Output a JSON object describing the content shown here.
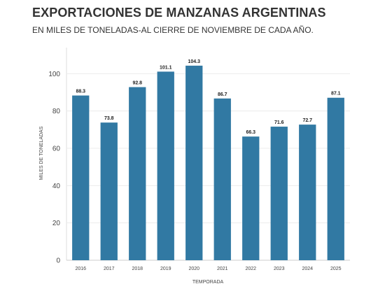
{
  "header": {
    "title": "EXPORTACIONES DE MANZANAS ARGENTINAS",
    "subtitle": "EN MILES DE TONELADAS-AL CIERRE DE NOVIEMBRE DE CADA AÑO."
  },
  "chart_data": {
    "type": "bar",
    "categories": [
      "2016",
      "2017",
      "2018",
      "2019",
      "2020",
      "2021",
      "2022",
      "2023",
      "2024",
      "2025"
    ],
    "values": [
      88.3,
      73.8,
      92.8,
      101.1,
      104.3,
      86.7,
      66.3,
      71.6,
      72.7,
      87.1
    ],
    "value_labels": [
      "88.3",
      "73.8",
      "92.8",
      "101.1",
      "104.3",
      "86.7",
      "66.3",
      "71.6",
      "72.7",
      "87.1"
    ],
    "xlabel": "TEMPORADA",
    "ylabel": "MILES DE TONELADAS",
    "ylim": [
      0,
      114
    ],
    "yticks": [
      0,
      20,
      40,
      60,
      80,
      100
    ],
    "ytick_labels": [
      "0",
      "20",
      "40",
      "60",
      "80",
      "100"
    ],
    "grid": true,
    "legend": "none",
    "bar_color": "#3179a3"
  }
}
